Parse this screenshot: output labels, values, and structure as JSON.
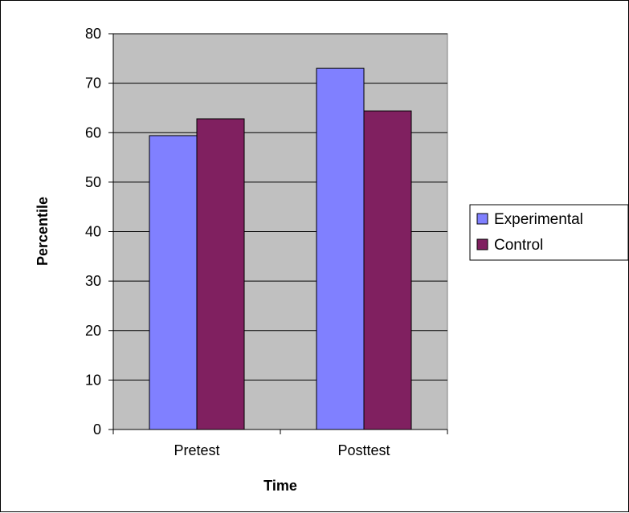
{
  "chart_data": {
    "type": "bar",
    "title": "",
    "xlabel": "Time",
    "ylabel": "Percentile",
    "categories": [
      "Pretest",
      "Posttest"
    ],
    "series": [
      {
        "name": "Experimental",
        "values": [
          59.4,
          73.0
        ],
        "color": "#8080FF"
      },
      {
        "name": "Control",
        "values": [
          62.8,
          64.4
        ],
        "color": "#802060"
      }
    ],
    "ylim": [
      0,
      80
    ],
    "yticks": [
      0,
      10,
      20,
      30,
      40,
      50,
      60,
      70,
      80
    ],
    "grid": true,
    "plot_background": "#C0C0C0",
    "legend_position": "right"
  }
}
